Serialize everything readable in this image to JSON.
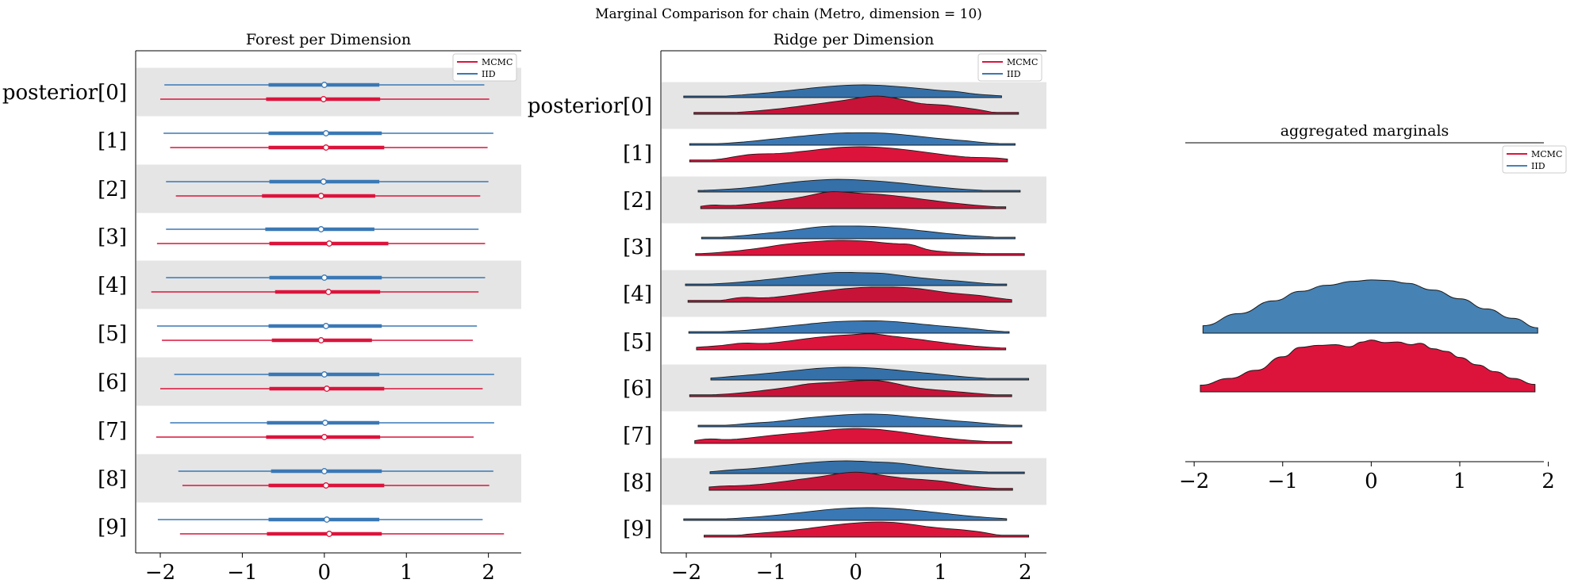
{
  "figure": {
    "suptitle": "Marginal Comparison for chain (Metro, dimension = 10)"
  },
  "chart_data": [
    {
      "type": "forest",
      "title": "Forest per Dimension",
      "xlim": [
        -2.3,
        2.4
      ],
      "xticks": [
        -2,
        -1,
        0,
        1,
        2
      ],
      "xtick_labels": [
        "−2",
        "−1",
        "0",
        "1",
        "2"
      ],
      "row_labels": [
        "posterior[0]",
        "[1]",
        "[2]",
        "[3]",
        "[4]",
        "[5]",
        "[6]",
        "[7]",
        "[8]",
        "[9]"
      ],
      "shaded_rows": [
        0,
        2,
        4,
        6,
        8
      ],
      "legend": {
        "placement": "top-right",
        "entries": [
          "MCMC",
          "IID"
        ]
      },
      "series": [
        {
          "name": "IID",
          "color": "#3a78b5",
          "rows": [
            {
              "lo": -1.95,
              "q1": -0.68,
              "median": 0.0,
              "q3": 0.67,
              "hi": 1.95
            },
            {
              "lo": -1.96,
              "q1": -0.68,
              "median": 0.02,
              "q3": 0.7,
              "hi": 2.06
            },
            {
              "lo": -1.93,
              "q1": -0.67,
              "median": -0.01,
              "q3": 0.67,
              "hi": 2.0
            },
            {
              "lo": -1.93,
              "q1": -0.72,
              "median": -0.04,
              "q3": 0.61,
              "hi": 1.88
            },
            {
              "lo": -1.93,
              "q1": -0.67,
              "median": 0.0,
              "q3": 0.7,
              "hi": 1.96
            },
            {
              "lo": -2.04,
              "q1": -0.68,
              "median": 0.02,
              "q3": 0.7,
              "hi": 1.86
            },
            {
              "lo": -1.83,
              "q1": -0.68,
              "median": 0.0,
              "q3": 0.67,
              "hi": 2.07
            },
            {
              "lo": -1.88,
              "q1": -0.7,
              "median": 0.01,
              "q3": 0.67,
              "hi": 2.07
            },
            {
              "lo": -1.78,
              "q1": -0.65,
              "median": 0.0,
              "q3": 0.7,
              "hi": 2.06
            },
            {
              "lo": -2.03,
              "q1": -0.68,
              "median": 0.03,
              "q3": 0.67,
              "hi": 1.93
            }
          ]
        },
        {
          "name": "MCMC",
          "color": "#dc143c",
          "rows": [
            {
              "lo": -2.0,
              "q1": -0.71,
              "median": -0.01,
              "q3": 0.68,
              "hi": 2.01
            },
            {
              "lo": -1.88,
              "q1": -0.68,
              "median": 0.02,
              "q3": 0.73,
              "hi": 1.99
            },
            {
              "lo": -1.81,
              "q1": -0.76,
              "median": -0.04,
              "q3": 0.62,
              "hi": 1.9
            },
            {
              "lo": -2.04,
              "q1": -0.67,
              "median": 0.06,
              "q3": 0.78,
              "hi": 1.96
            },
            {
              "lo": -2.11,
              "q1": -0.6,
              "median": 0.05,
              "q3": 0.68,
              "hi": 1.88
            },
            {
              "lo": -1.98,
              "q1": -0.64,
              "median": -0.04,
              "q3": 0.58,
              "hi": 1.81
            },
            {
              "lo": -2.0,
              "q1": -0.67,
              "median": 0.03,
              "q3": 0.73,
              "hi": 1.93
            },
            {
              "lo": -2.05,
              "q1": -0.71,
              "median": 0.0,
              "q3": 0.68,
              "hi": 1.82
            },
            {
              "lo": -1.73,
              "q1": -0.68,
              "median": 0.02,
              "q3": 0.73,
              "hi": 2.01
            },
            {
              "lo": -1.76,
              "q1": -0.7,
              "median": 0.06,
              "q3": 0.7,
              "hi": 2.19
            }
          ]
        }
      ]
    },
    {
      "type": "ridge",
      "title": "Ridge per Dimension",
      "xlim": [
        -2.3,
        2.25
      ],
      "xticks": [
        -2,
        -1,
        0,
        1,
        2
      ],
      "xtick_labels": [
        "−2",
        "−1",
        "0",
        "1",
        "2"
      ],
      "row_labels": [
        "posterior[0]",
        "[1]",
        "[2]",
        "[3]",
        "[4]",
        "[5]",
        "[6]",
        "[7]",
        "[8]",
        "[9]"
      ],
      "shaded_rows": [
        0,
        2,
        4,
        6,
        8
      ],
      "legend": {
        "placement": "top-right",
        "entries": [
          "MCMC",
          "IID"
        ]
      },
      "series": [
        {
          "name": "IID",
          "color": "#3a78b5",
          "rows": [
            {
              "lo": -2.03,
              "hi": 1.72,
              "peak": 0.2
            },
            {
              "lo": -1.96,
              "hi": 1.88,
              "peak": 0.1
            },
            {
              "lo": -1.86,
              "hi": 1.94,
              "peak": -0.3
            },
            {
              "lo": -1.82,
              "hi": 1.88,
              "peak": 0.0
            },
            {
              "lo": -2.01,
              "hi": 1.78,
              "peak": -0.1
            },
            {
              "lo": -1.97,
              "hi": 1.81,
              "peak": 0.2
            },
            {
              "lo": -1.71,
              "hi": 2.04,
              "peak": -0.2
            },
            {
              "lo": -1.86,
              "hi": 1.96,
              "peak": 0.3
            },
            {
              "lo": -1.72,
              "hi": 1.99,
              "peak": -0.2
            },
            {
              "lo": -2.03,
              "hi": 1.78,
              "peak": 0.3
            }
          ]
        },
        {
          "name": "MCMC",
          "color": "#dc143c",
          "rows": [
            {
              "lo": -1.91,
              "hi": 1.92,
              "peak": 0.5
            },
            {
              "lo": -1.96,
              "hi": 1.79,
              "peak": 0.1
            },
            {
              "lo": -1.83,
              "hi": 1.77,
              "peak": 0.0
            },
            {
              "lo": -1.89,
              "hi": 1.99,
              "peak": -0.3
            },
            {
              "lo": -1.98,
              "hi": 1.84,
              "peak": 0.5
            },
            {
              "lo": -1.88,
              "hi": 1.77,
              "peak": 0.1
            },
            {
              "lo": -1.96,
              "hi": 1.84,
              "peak": 0.0
            },
            {
              "lo": -1.9,
              "hi": 1.84,
              "peak": -0.2
            },
            {
              "lo": -1.73,
              "hi": 1.85,
              "peak": 0.0
            },
            {
              "lo": -1.79,
              "hi": 2.04,
              "peak": 0.6
            }
          ]
        }
      ]
    },
    {
      "type": "area",
      "title": "aggregated marginals",
      "xlim": [
        -2.1,
        1.95
      ],
      "xticks": [
        -2,
        -1,
        0,
        1,
        2
      ],
      "xtick_labels": [
        "−2",
        "−1",
        "0",
        "1",
        "2"
      ],
      "legend": {
        "placement": "top-right",
        "entries": [
          "MCMC",
          "IID"
        ]
      },
      "series": [
        {
          "name": "IID",
          "color": "#4682b4",
          "x": [
            -1.9,
            -1.5,
            -1.1,
            -0.8,
            -0.5,
            -0.2,
            0.0,
            0.2,
            0.4,
            0.7,
            1.0,
            1.3,
            1.6,
            1.88
          ],
          "density": [
            0.055,
            0.145,
            0.24,
            0.31,
            0.355,
            0.385,
            0.395,
            0.39,
            0.37,
            0.32,
            0.255,
            0.18,
            0.11,
            0.04
          ]
        },
        {
          "name": "MCMC",
          "color": "#dc143c",
          "x": [
            -1.93,
            -1.6,
            -1.3,
            -1.0,
            -0.8,
            -0.6,
            -0.4,
            -0.25,
            -0.1,
            0.0,
            0.15,
            0.3,
            0.45,
            0.55,
            0.7,
            0.85,
            1.0,
            1.2,
            1.4,
            1.6,
            1.85
          ],
          "density": [
            0.05,
            0.1,
            0.16,
            0.26,
            0.33,
            0.345,
            0.35,
            0.335,
            0.37,
            0.385,
            0.365,
            0.37,
            0.35,
            0.36,
            0.32,
            0.3,
            0.255,
            0.2,
            0.15,
            0.1,
            0.055
          ]
        }
      ]
    }
  ]
}
